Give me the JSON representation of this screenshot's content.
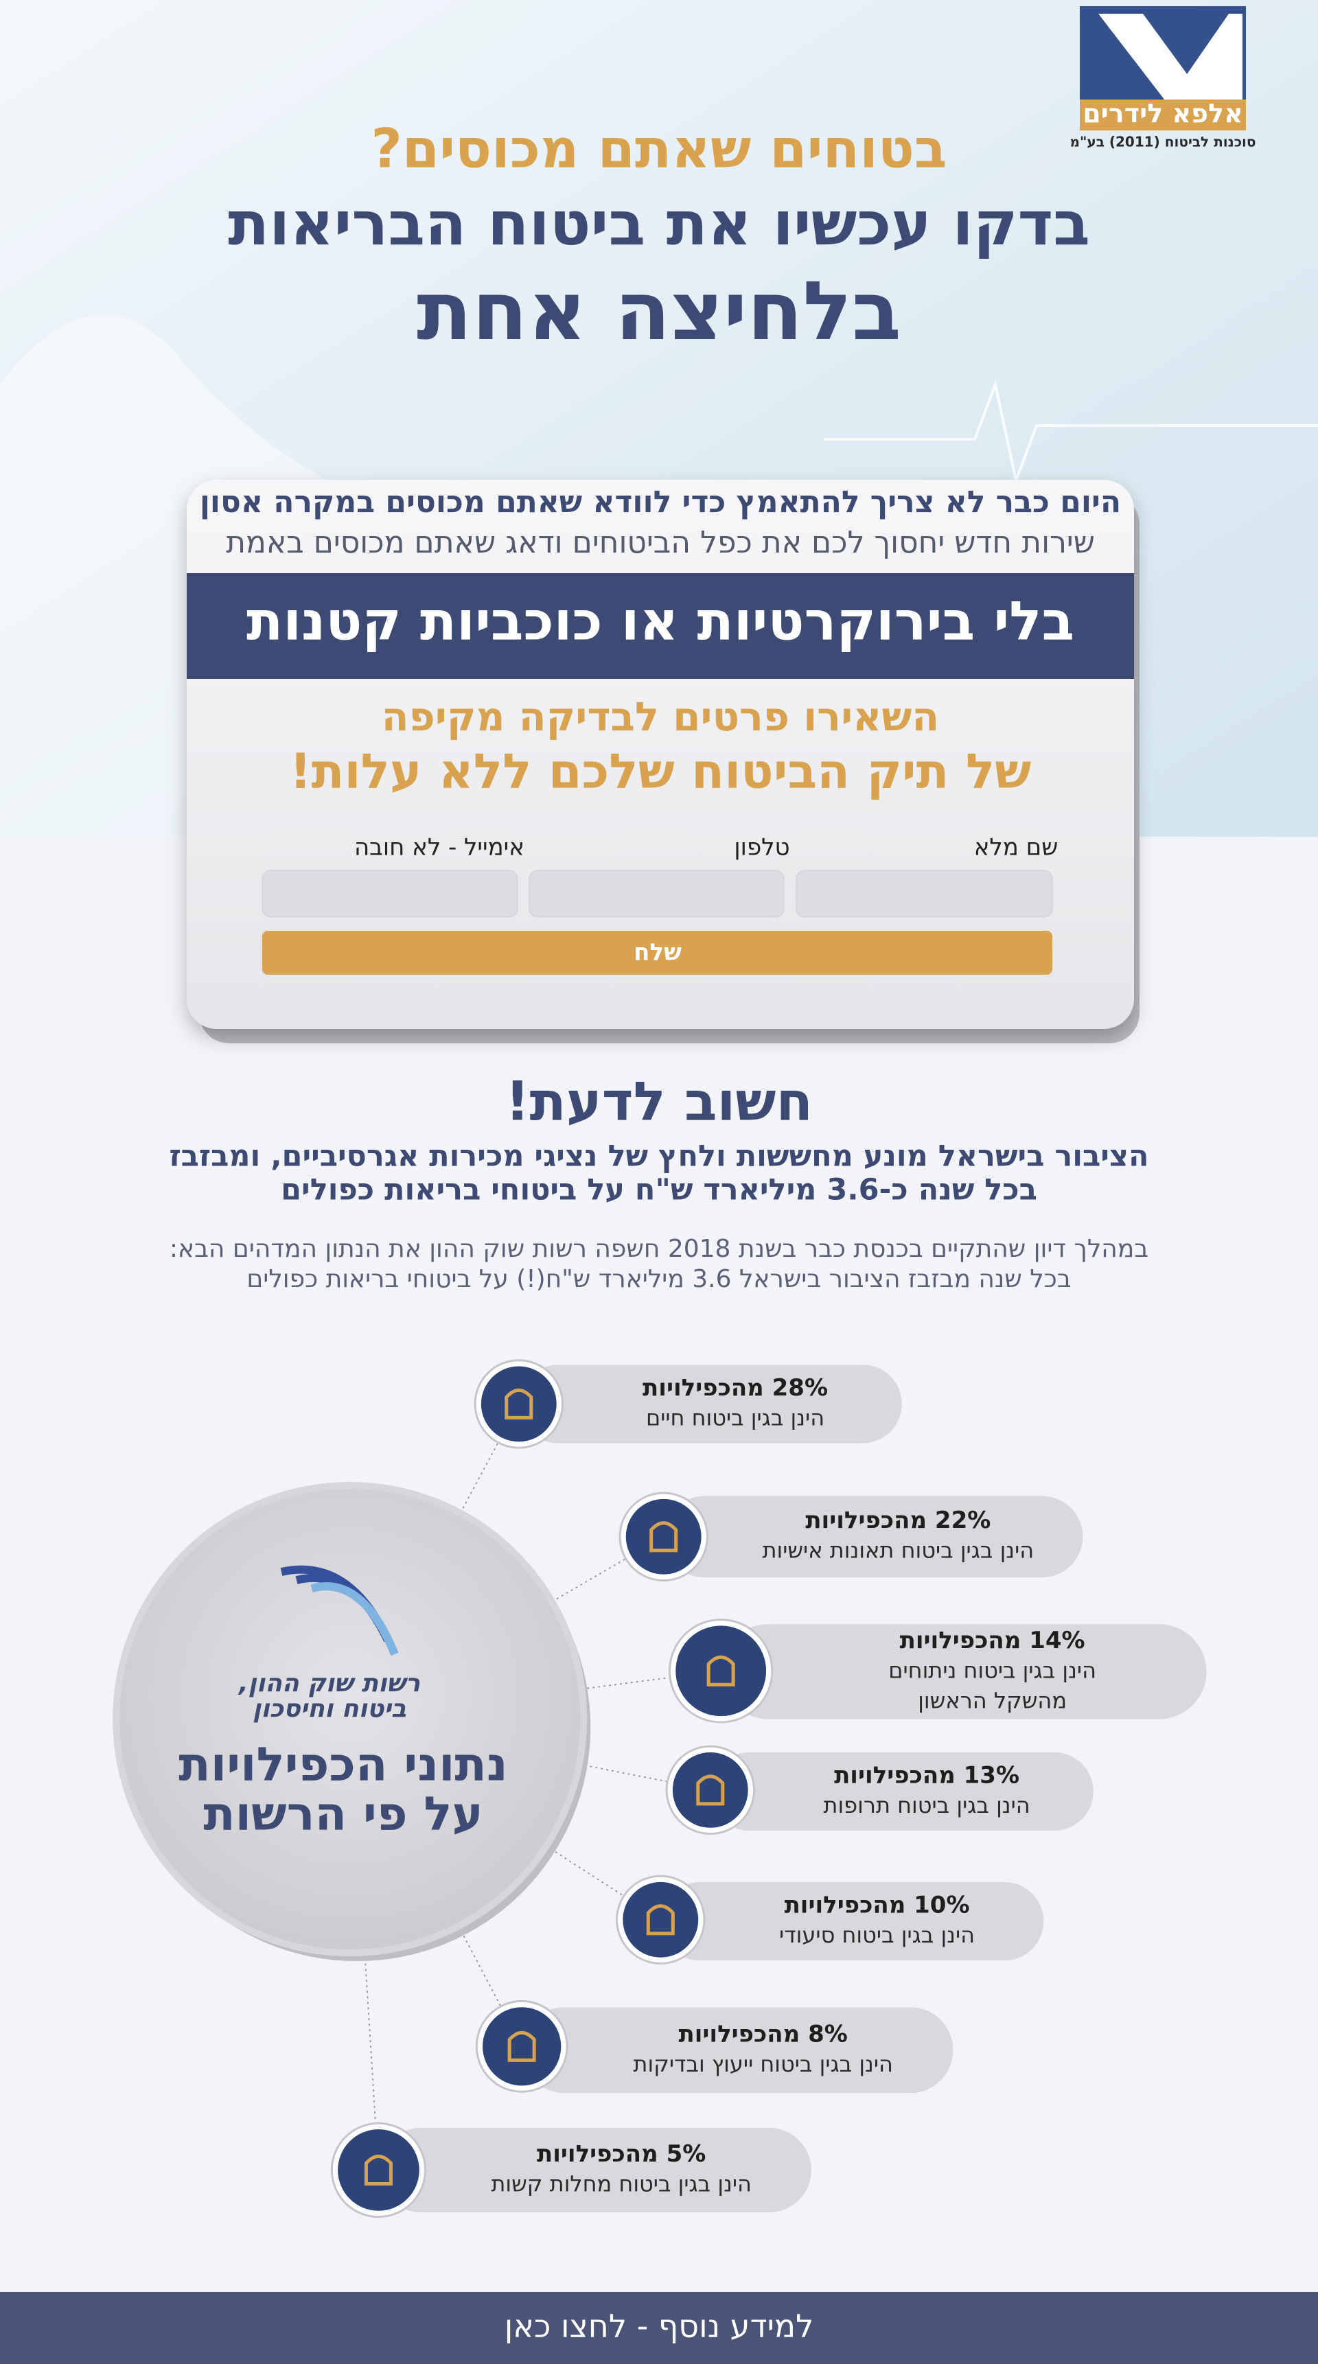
{
  "header": {
    "logo": {
      "name": "אלפא לידרים",
      "subtitle": "סוכנות לביטוח (2011) בע\"מ"
    },
    "headline": [
      "בטוחים שאתם מכוסים?",
      "בדקו עכשיו את ביטוח הבריאות",
      "בלחיצה אחת"
    ]
  },
  "form_card": {
    "intro": [
      "היום כבר לא צריך להתאמץ כדי לוודא שאתם מכוסים במקרה אסון",
      "שירות חדש יחסוך לכם את כפל הביטוחים ודאג שאתם מכוסים באמת"
    ],
    "banner": "בלי בירוקרטיות או כוכביות קטנות",
    "offer": [
      "השאירו פרטים לבדיקה מקיפה",
      "של תיק הביטוח שלכם ללא עלות!"
    ],
    "fields": [
      "שם מלא",
      "טלפון",
      "אימייל - לא חובה"
    ],
    "submit": "שלח"
  },
  "info": {
    "title": "חשוב לדעת!",
    "highlight": [
      "הציבור בישראל מונע מחששות ולחץ של נציגי מכירות אגרסיביים, ומבזבז",
      "בכל שנה כ-3.6 מיליארד ש\"ח על ביטוחי בריאות כפולים"
    ],
    "body": [
      "במהלך דיון שהתקיים בכנסת כבר בשנת 2018 חשפה רשות שוק ההון את הנתון המדהים הבא:",
      "בכל שנה מבזבז הציבור בישראל 3.6 מיליארד ש\"ח(!) על ביטוחי בריאות כפולים"
    ]
  },
  "duplicates": {
    "center": {
      "org": [
        "רשות שוק ההון,",
        "ביטוח וחיסכון"
      ],
      "title": [
        "נתוני הכפילויות",
        "על פי הרשות"
      ]
    },
    "items": [
      {
        "headline": "28% מהכפילויות",
        "detail": [
          "הינן בגין ביטוח חיים"
        ]
      },
      {
        "headline": "22% מהכפילויות",
        "detail": [
          "הינן בגין ביטוח תאונות אישיות"
        ]
      },
      {
        "headline": "14% מהכפילויות",
        "detail": [
          "הינן בגין ביטוח ניתוחים",
          "מהשקל הראשון"
        ]
      },
      {
        "headline": "13% מהכפילויות",
        "detail": [
          "הינן בגין ביטוח תרופות"
        ]
      },
      {
        "headline": "10% מהכפילויות",
        "detail": [
          "הינן בגין ביטוח סיעודי"
        ]
      },
      {
        "headline": "8% מהכפילויות",
        "detail": [
          "הינן בגין ביטוח ייעוץ ובדיקות"
        ]
      },
      {
        "headline": "5% מהכפילויות",
        "detail": [
          "הינן בגין ביטוח מחלות קשות"
        ]
      }
    ]
  },
  "footer": {
    "cta": "למידע נוסף - לחצו כאן"
  }
}
